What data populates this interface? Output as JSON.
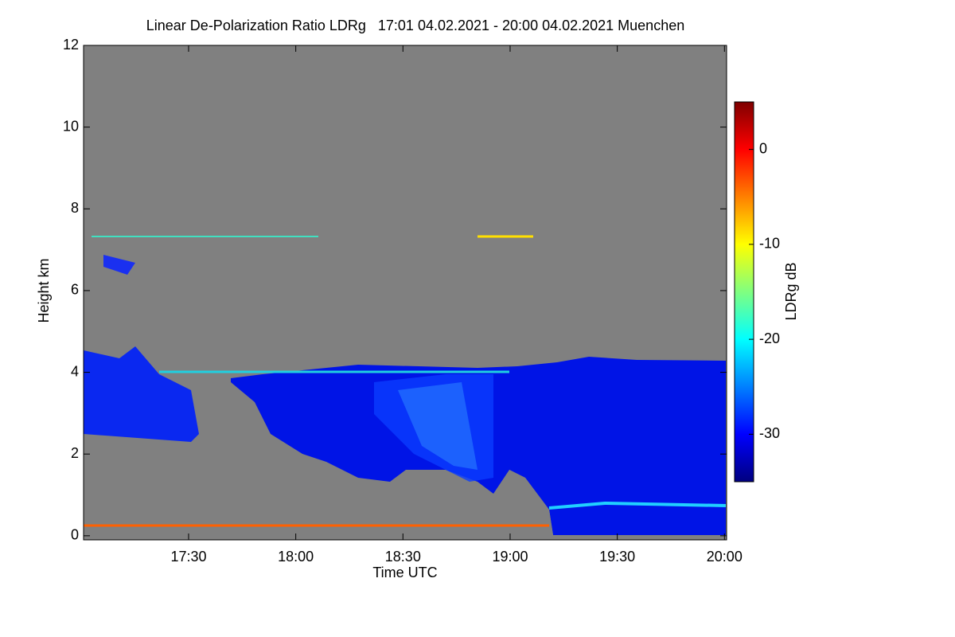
{
  "chart_data": {
    "type": "heatmap",
    "title": "Linear De-Polarization Ratio LDRg   17:01 04.02.2021 - 20:00 04.02.2021 Muenchen",
    "x_label": "Time UTC",
    "y_label": "Height km",
    "xlim": [
      17.01,
      20.01
    ],
    "xticks": [
      {
        "value": 17.5,
        "label": "17:30"
      },
      {
        "value": 18,
        "label": "18:00"
      },
      {
        "value": 18.5,
        "label": "18:30"
      },
      {
        "value": 19,
        "label": "19:00"
      },
      {
        "value": 19.5,
        "label": "19:30"
      },
      {
        "value": 20,
        "label": "20:00"
      }
    ],
    "ylim": [
      -0.1,
      12
    ],
    "yticks": [
      0,
      2,
      4,
      6,
      8,
      10,
      12
    ],
    "colorbar": {
      "label": "LDRg dB",
      "zlim": [
        -35,
        5
      ],
      "ticks": [
        0,
        -10,
        -20,
        -30
      ],
      "colormap": [
        "#00007f",
        "#0000ff",
        "#0080ff",
        "#00ffff",
        "#80ff80",
        "#ffff00",
        "#ff8000",
        "#ff0000",
        "#7f0000"
      ]
    }
  }
}
